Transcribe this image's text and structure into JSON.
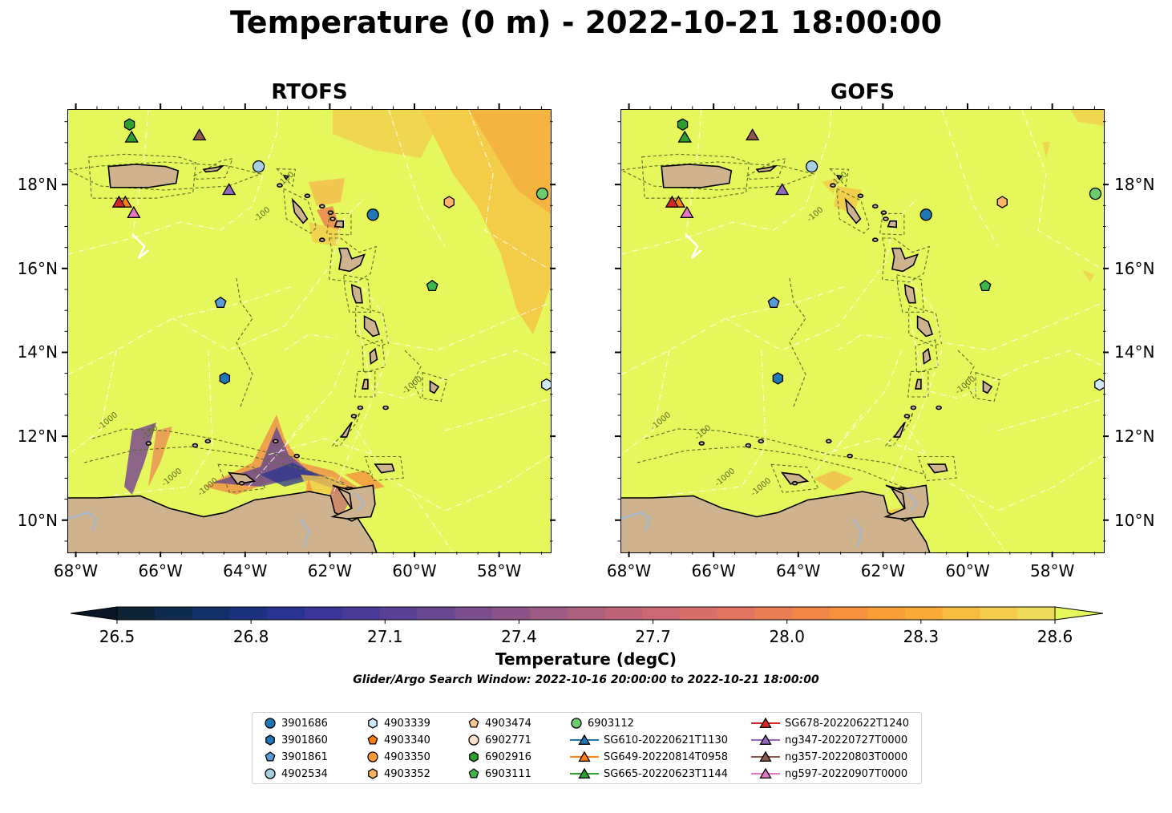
{
  "title": "Temperature (0 m) - 2022-10-21 18:00:00",
  "panels": [
    {
      "title": "RTOFS",
      "model": "rtofs"
    },
    {
      "title": "GOFS",
      "model": "gofs"
    }
  ],
  "map_extent": {
    "lon": [
      -68.2,
      -56.8
    ],
    "lat": [
      9.25,
      19.8
    ]
  },
  "x_ticks": [
    "68°W",
    "66°W",
    "64°W",
    "62°W",
    "60°W",
    "58°W"
  ],
  "y_ticks": [
    "10°N",
    "12°N",
    "14°N",
    "16°N",
    "18°N"
  ],
  "contour_labels": [
    "-100",
    "-1000"
  ],
  "colors": {
    "ocean": "#e5f75a",
    "land": "#cfb38f",
    "river": "#9fb8d6",
    "eez": "#ffffff",
    "contour": "#5a6e28"
  },
  "colorbar": {
    "label": "Temperature (degC)",
    "min": 26.5,
    "max": 28.6,
    "ticks": [
      "26.5",
      "26.8",
      "27.1",
      "27.4",
      "27.7",
      "28.0",
      "28.3",
      "28.6"
    ],
    "extend": "both",
    "colors": [
      "#0c2436",
      "#0e2a4d",
      "#132f67",
      "#1c327e",
      "#28348f",
      "#3a3596",
      "#4a3a98",
      "#5a4094",
      "#6a4690",
      "#7a4d8c",
      "#8b5388",
      "#9c5a84",
      "#ad5f7e",
      "#bd6378",
      "#cb6972",
      "#d76f6a",
      "#e27561",
      "#eb7d54",
      "#f28648",
      "#f6913e",
      "#f89e37",
      "#f8ab35",
      "#f7bb3d",
      "#f4cb4b",
      "#efdb5a"
    ],
    "under_color": "#0a1628",
    "over_color": "#e5f75a"
  },
  "search_window": "Glider/Argo Search Window: 2022-10-16 20:00:00 to 2022-10-21 18:00:00",
  "observations": [
    {
      "id": "3901686",
      "kind": "argo",
      "marker": "circle",
      "color": "#1f77b4",
      "lon": -61.0,
      "lat": 17.3
    },
    {
      "id": "3901860",
      "kind": "argo",
      "marker": "hexagon",
      "color": "#1f77b4",
      "lon": -64.5,
      "lat": 13.4
    },
    {
      "id": "3901861",
      "kind": "argo",
      "marker": "pentagon",
      "color": "#5b9bd5",
      "lon": -64.6,
      "lat": 15.2
    },
    {
      "id": "4902534",
      "kind": "argo",
      "marker": "circle",
      "color": "#a6cee3",
      "lon": -63.7,
      "lat": 18.45
    },
    {
      "id": "4903339",
      "kind": "argo",
      "marker": "hexagon",
      "color": "#cfe8f7",
      "lon": -56.9,
      "lat": 13.25
    },
    {
      "id": "4903340",
      "kind": "argo",
      "marker": "pentagon",
      "color": "#ff7f0e",
      "lon": null,
      "lat": null
    },
    {
      "id": "4903350",
      "kind": "argo",
      "marker": "circle",
      "color": "#fd9a3a",
      "lon": null,
      "lat": null
    },
    {
      "id": "4903352",
      "kind": "argo",
      "marker": "hexagon",
      "color": "#fdb462",
      "lon": -59.2,
      "lat": 17.6
    },
    {
      "id": "4903474",
      "kind": "argo",
      "marker": "pentagon",
      "color": "#fdc894",
      "lon": null,
      "lat": null
    },
    {
      "id": "6902771",
      "kind": "argo",
      "marker": "circle",
      "color": "#fde0c5",
      "lon": null,
      "lat": null
    },
    {
      "id": "6902916",
      "kind": "argo",
      "marker": "hexagon",
      "color": "#2ca02c",
      "lon": -66.75,
      "lat": 19.45
    },
    {
      "id": "6903111",
      "kind": "argo",
      "marker": "pentagon",
      "color": "#3cb84a",
      "lon": -59.6,
      "lat": 15.6
    },
    {
      "id": "6903112",
      "kind": "argo",
      "marker": "circle",
      "color": "#6ccb6b",
      "lon": -57.0,
      "lat": 17.8
    },
    {
      "id": "SG610-20220621T1130",
      "kind": "glider",
      "marker": "triangle",
      "color": "#1f77b4",
      "lon": null,
      "lat": null
    },
    {
      "id": "SG649-20220814T0958",
      "kind": "glider",
      "marker": "triangle",
      "color": "#ff7f0e",
      "lon": -66.85,
      "lat": 17.6
    },
    {
      "id": "SG665-20220623T1144",
      "kind": "glider",
      "marker": "triangle",
      "color": "#2ca02c",
      "lon": -66.7,
      "lat": 19.15
    },
    {
      "id": "SG678-20220622T1240",
      "kind": "glider",
      "marker": "triangle",
      "color": "#d62728",
      "lon": -67.0,
      "lat": 17.6
    },
    {
      "id": "ng347-20220727T0000",
      "kind": "glider",
      "marker": "triangle",
      "color": "#9467bd",
      "lon": -64.4,
      "lat": 17.9
    },
    {
      "id": "ng357-20220803T0000",
      "kind": "glider",
      "marker": "triangle",
      "color": "#8c564b",
      "lon": -65.1,
      "lat": 19.2
    },
    {
      "id": "ng597-20220907T0000",
      "kind": "glider",
      "marker": "triangle",
      "color": "#e377c2",
      "lon": -66.65,
      "lat": 17.35
    }
  ]
}
